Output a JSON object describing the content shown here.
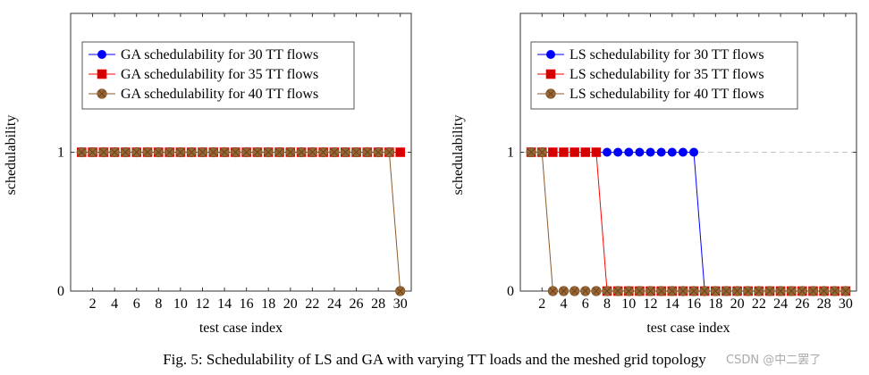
{
  "caption": "Fig. 5: Schedulability of LS and GA with varying TT loads and the meshed grid topology",
  "watermark": "CSDN @中二罢了",
  "chart_data": [
    {
      "type": "line",
      "xlabel": "test case index",
      "ylabel": "schedulability",
      "xlim": [
        0,
        31
      ],
      "ylim": [
        0,
        2
      ],
      "xticks": [
        2,
        4,
        6,
        8,
        10,
        12,
        14,
        16,
        18,
        20,
        22,
        24,
        26,
        28,
        30
      ],
      "yticks": [
        0,
        1
      ],
      "grid": "y",
      "legend_position": "top-left",
      "x": [
        1,
        2,
        3,
        4,
        5,
        6,
        7,
        8,
        9,
        10,
        11,
        12,
        13,
        14,
        15,
        16,
        17,
        18,
        19,
        20,
        21,
        22,
        23,
        24,
        25,
        26,
        27,
        28,
        29,
        30
      ],
      "series": [
        {
          "name": "GA schedulability for 30 TT flows",
          "color": "#0000ff",
          "marker": "circle",
          "values": [
            1,
            1,
            1,
            1,
            1,
            1,
            1,
            1,
            1,
            1,
            1,
            1,
            1,
            1,
            1,
            1,
            1,
            1,
            1,
            1,
            1,
            1,
            1,
            1,
            1,
            1,
            1,
            1,
            1,
            1
          ]
        },
        {
          "name": "GA schedulability for 35 TT flows",
          "color": "#ff0000",
          "marker": "square",
          "values": [
            1,
            1,
            1,
            1,
            1,
            1,
            1,
            1,
            1,
            1,
            1,
            1,
            1,
            1,
            1,
            1,
            1,
            1,
            1,
            1,
            1,
            1,
            1,
            1,
            1,
            1,
            1,
            1,
            1,
            1
          ]
        },
        {
          "name": "GA schedulability for 40 TT flows",
          "color": "#8b5a2b",
          "marker": "otimes",
          "values": [
            1,
            1,
            1,
            1,
            1,
            1,
            1,
            1,
            1,
            1,
            1,
            1,
            1,
            1,
            1,
            1,
            1,
            1,
            1,
            1,
            1,
            1,
            1,
            1,
            1,
            1,
            1,
            1,
            1,
            0
          ]
        }
      ]
    },
    {
      "type": "line",
      "xlabel": "test case index",
      "ylabel": "schedulability",
      "xlim": [
        0,
        31
      ],
      "ylim": [
        0,
        2
      ],
      "xticks": [
        2,
        4,
        6,
        8,
        10,
        12,
        14,
        16,
        18,
        20,
        22,
        24,
        26,
        28,
        30
      ],
      "yticks": [
        0,
        1
      ],
      "grid": "y",
      "legend_position": "top-left",
      "x": [
        1,
        2,
        3,
        4,
        5,
        6,
        7,
        8,
        9,
        10,
        11,
        12,
        13,
        14,
        15,
        16,
        17,
        18,
        19,
        20,
        21,
        22,
        23,
        24,
        25,
        26,
        27,
        28,
        29,
        30
      ],
      "series": [
        {
          "name": "LS schedulability for 30 TT flows",
          "color": "#0000ff",
          "marker": "circle",
          "values": [
            1,
            1,
            1,
            1,
            1,
            1,
            1,
            1,
            1,
            1,
            1,
            1,
            1,
            1,
            1,
            1,
            0,
            0,
            0,
            0,
            0,
            0,
            0,
            0,
            0,
            0,
            0,
            0,
            0,
            0
          ]
        },
        {
          "name": "LS schedulability for 35 TT flows",
          "color": "#ff0000",
          "marker": "square",
          "values": [
            1,
            1,
            1,
            1,
            1,
            1,
            1,
            0,
            0,
            0,
            0,
            0,
            0,
            0,
            0,
            0,
            0,
            0,
            0,
            0,
            0,
            0,
            0,
            0,
            0,
            0,
            0,
            0,
            0,
            0
          ]
        },
        {
          "name": "LS schedulability for 40 TT flows",
          "color": "#8b5a2b",
          "marker": "otimes",
          "values": [
            1,
            1,
            0,
            0,
            0,
            0,
            0,
            0,
            0,
            0,
            0,
            0,
            0,
            0,
            0,
            0,
            0,
            0,
            0,
            0,
            0,
            0,
            0,
            0,
            0,
            0,
            0,
            0,
            0,
            0
          ]
        }
      ]
    }
  ]
}
